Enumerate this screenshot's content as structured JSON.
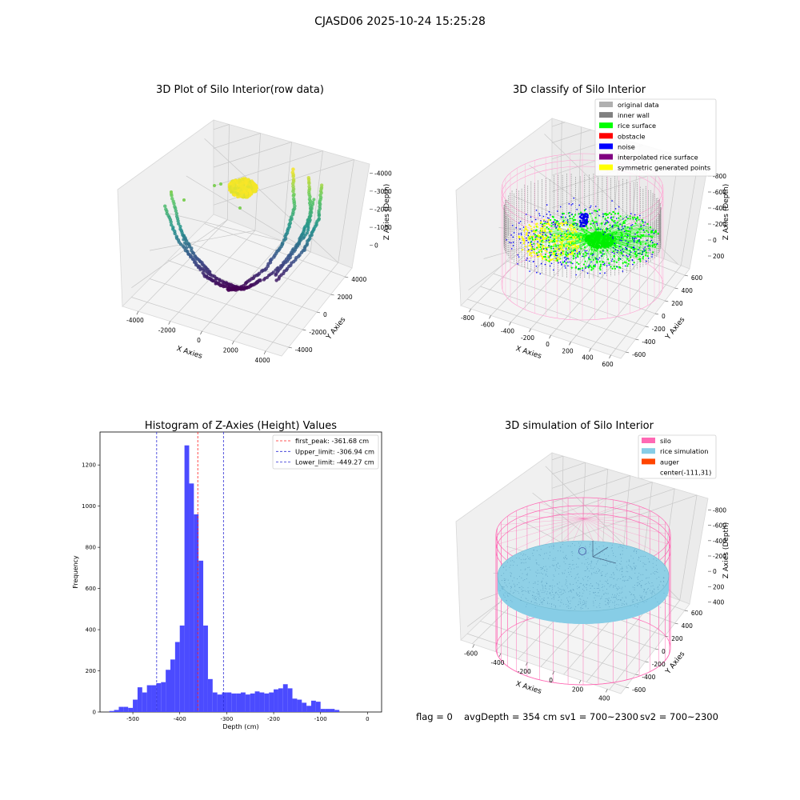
{
  "page": {
    "suptitle": "CJASD06 2025-10-24 15:25:28",
    "status": {
      "flag": "flag = 0",
      "avg_depth": "avgDepth = 354 cm",
      "sv1": "sv1 = 700~2300",
      "sv2": "sv2 = 700~2300"
    }
  },
  "colors": {
    "hist_bar": "#4b4bff",
    "first_peak": "#ff2020",
    "limits": "#2b2bd6",
    "silo": "#ff69b4",
    "rice_sim": "#87cde6",
    "auger": "#ff4500",
    "inner_wall": "#808080",
    "rice_surface": "#00ff00",
    "noise": "#0000ff",
    "symmetric": "#ffff00"
  },
  "chart_data": [
    {
      "type": "scatter",
      "title": "3D Plot of Silo Interior(row data)",
      "xlabel": "X Axies",
      "ylabel": "Y Axies",
      "zlabel": "Z Axies (Depth)",
      "x_ticks": [
        "-4000",
        "-2000",
        "0",
        "2000",
        "4000"
      ],
      "y_ticks": [
        "-4000",
        "-2000",
        "0",
        "2000",
        "4000"
      ],
      "z_ticks": [
        "0",
        "-1000",
        "-2000",
        "-3000",
        "-4000"
      ],
      "xlim": [
        -4500,
        4500
      ],
      "ylim": [
        -4500,
        4500
      ],
      "zlim": [
        -4500,
        0
      ],
      "colormap": "viridis"
    },
    {
      "type": "scatter",
      "title": "3D classify of Silo Interior",
      "xlabel": "X Axies",
      "ylabel": "Y Axies",
      "zlabel": "Z Axies (Depth)",
      "x_ticks": [
        "-800",
        "-600",
        "-400",
        "-200",
        "0",
        "200",
        "400",
        "600"
      ],
      "y_ticks": [
        "-600",
        "-400",
        "-200",
        "0",
        "200",
        "400",
        "600"
      ],
      "z_ticks": [
        "200",
        "0",
        "-200",
        "-400",
        "-600",
        "-800"
      ],
      "legend": [
        {
          "label": "original data",
          "color": "#b0b0b0"
        },
        {
          "label": "inner wall",
          "color": "#808080"
        },
        {
          "label": "rice surface",
          "color": "#00ff00"
        },
        {
          "label": "obstacle",
          "color": "#ff0000"
        },
        {
          "label": "noise",
          "color": "#0000ff"
        },
        {
          "label": "interpolated rice surface",
          "color": "#800080"
        },
        {
          "label": "symmetric generated points",
          "color": "#ffff00"
        }
      ],
      "legend_position": "top-right"
    },
    {
      "type": "bar",
      "title": "Histogram of Z-Axies (Height) Values",
      "xlabel": "Depth (cm)",
      "ylabel": "Frequency",
      "xlim": [
        -570,
        30
      ],
      "ylim": [
        0,
        1360
      ],
      "x_ticks": [
        -500,
        -400,
        -300,
        -200,
        -100,
        0
      ],
      "y_ticks": [
        0,
        200,
        400,
        600,
        800,
        1000,
        1200
      ],
      "bin_start": -550,
      "bin_width": 10,
      "values": [
        5,
        10,
        25,
        25,
        20,
        60,
        120,
        95,
        130,
        130,
        140,
        145,
        205,
        255,
        340,
        420,
        1295,
        1110,
        960,
        735,
        420,
        160,
        95,
        85,
        95,
        95,
        90,
        90,
        95,
        85,
        90,
        100,
        95,
        90,
        95,
        110,
        115,
        135,
        115,
        65,
        60,
        45,
        30,
        55,
        50,
        15,
        15,
        15,
        10
      ],
      "vlines": [
        {
          "x": -361.68,
          "label": "first_peak: -361.68 cm",
          "color": "#ff2020"
        },
        {
          "x": -306.94,
          "label": "Upper_limit: -306.94 cm",
          "color": "#2b2bd6"
        },
        {
          "x": -449.27,
          "label": "Lower_limit: -449.27 cm",
          "color": "#2b2bd6"
        }
      ],
      "legend_position": "top-right"
    },
    {
      "type": "scatter",
      "title": "3D simulation of Silo Interior",
      "xlabel": "X Axies",
      "ylabel": "Y Axies",
      "zlabel": "Z Axies (Depth)",
      "x_ticks": [
        "-600",
        "-400",
        "-200",
        "0",
        "200",
        "400"
      ],
      "y_ticks": [
        "-600",
        "-400",
        "-200",
        "0",
        "200",
        "400",
        "600"
      ],
      "z_ticks": [
        "400",
        "200",
        "0",
        "-200",
        "-400",
        "-600",
        "-800"
      ],
      "legend": [
        {
          "label": "silo",
          "color": "#ff69b4"
        },
        {
          "label": "rice simulation",
          "color": "#87cde6"
        },
        {
          "label": "auger",
          "color": "#ff4500"
        },
        {
          "label": "center(-111,31)",
          "color": ""
        }
      ],
      "legend_position": "top-right"
    }
  ]
}
